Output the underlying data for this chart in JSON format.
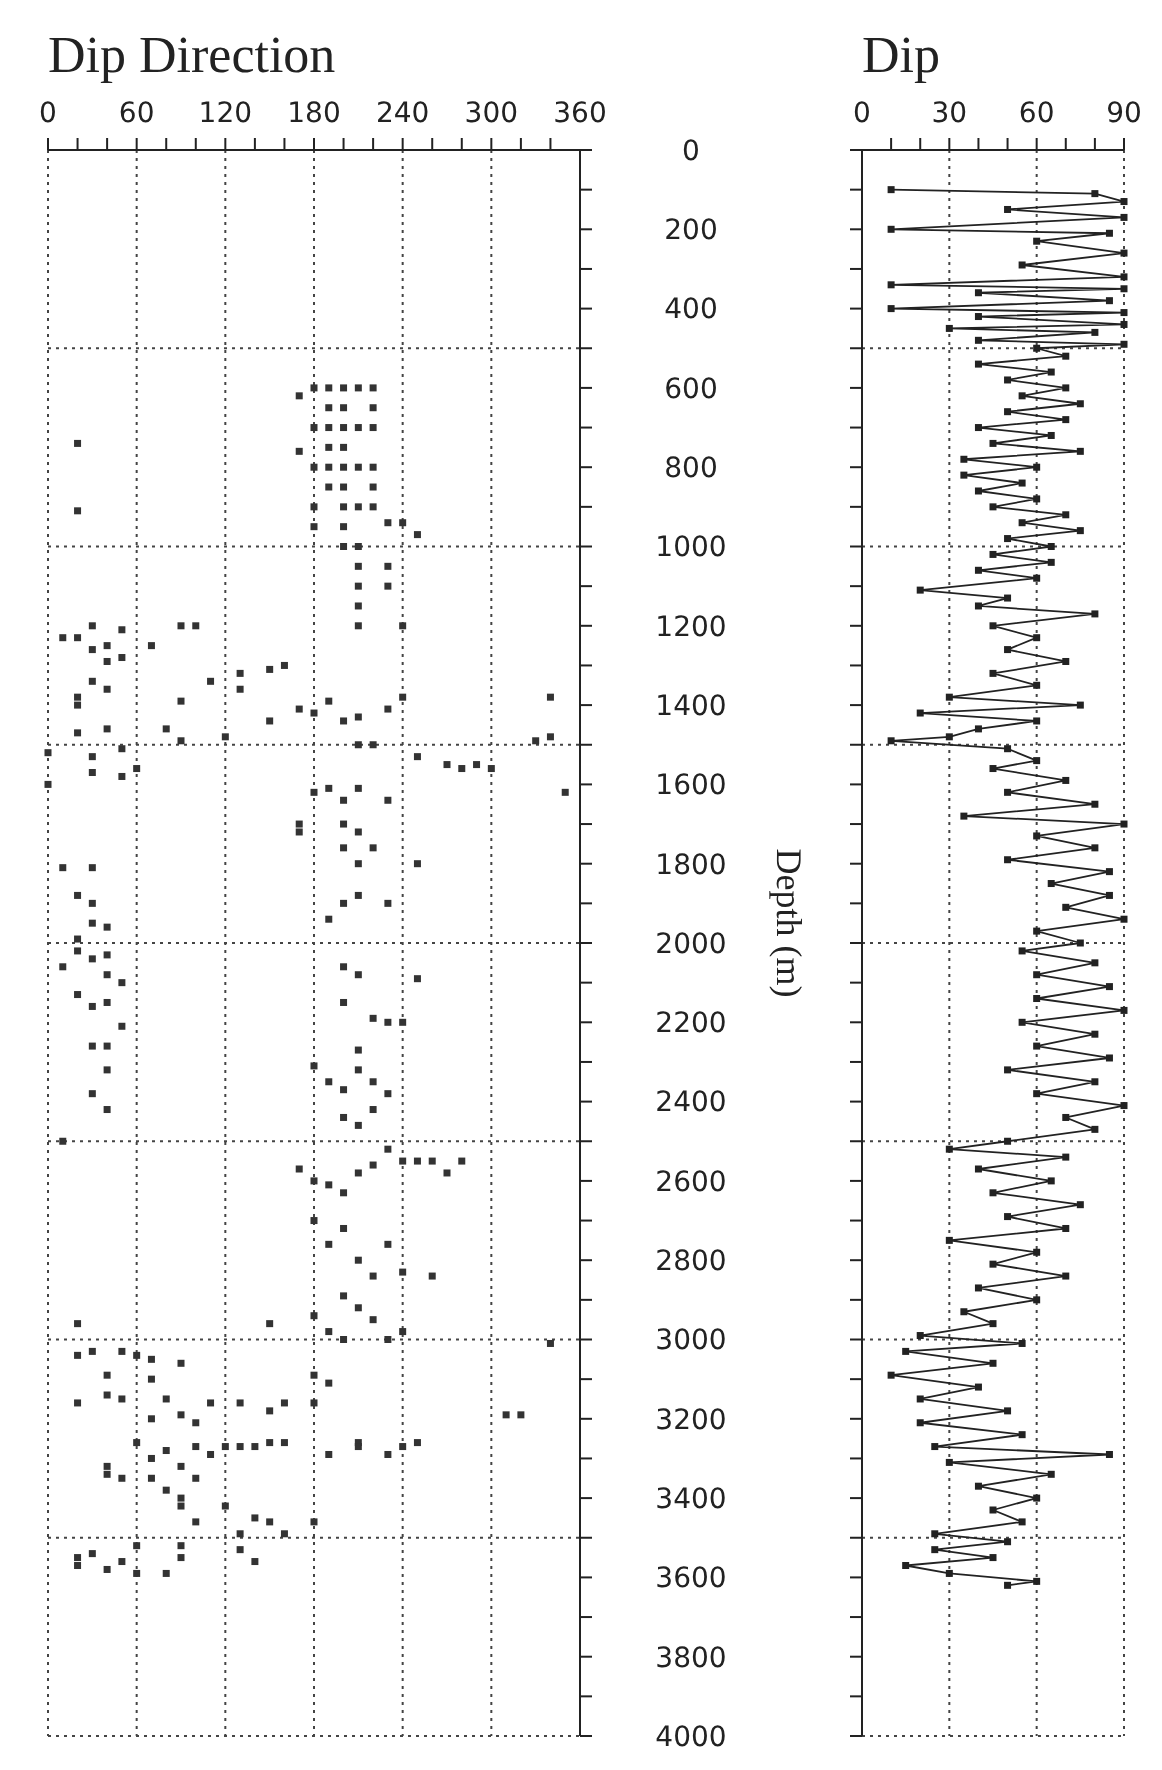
{
  "chart_data": [
    {
      "type": "scatter",
      "title": "Dip Direction",
      "ylabel": "Depth (m)",
      "marker": "square",
      "color": "#333333",
      "x": [
        20,
        20,
        190,
        190,
        190,
        190,
        190,
        190,
        200,
        200,
        200,
        200,
        200,
        200,
        200,
        200,
        200,
        210,
        210,
        210,
        210,
        210,
        210,
        210,
        210,
        210,
        220,
        220,
        220,
        220,
        220,
        220,
        180,
        180,
        180,
        180,
        180,
        170,
        170,
        230,
        230,
        230,
        240,
        240,
        250,
        10,
        20,
        30,
        30,
        40,
        40,
        50,
        50,
        70,
        90,
        100,
        110,
        130,
        130,
        150,
        150,
        160,
        30,
        40,
        20,
        20,
        90,
        170,
        180,
        190,
        200,
        210,
        230,
        240,
        20,
        40,
        80,
        120,
        90,
        330,
        340,
        340,
        210,
        220,
        0,
        0,
        30,
        30,
        50,
        50,
        60,
        250,
        270,
        280,
        290,
        300,
        350,
        180,
        190,
        200,
        210,
        230,
        170,
        170,
        200,
        200,
        210,
        210,
        220,
        210,
        200,
        190,
        230,
        250,
        10,
        30,
        20,
        30,
        30,
        20,
        40,
        10,
        20,
        30,
        40,
        40,
        50,
        20,
        30,
        40,
        50,
        30,
        40,
        30,
        40,
        40,
        200,
        210,
        200,
        220,
        230,
        210,
        240,
        250,
        180,
        190,
        200,
        210,
        220,
        230,
        200,
        210,
        220,
        10,
        180,
        190,
        200,
        210,
        220,
        230,
        240,
        250,
        260,
        270,
        280,
        170,
        180,
        190,
        200,
        210,
        220,
        230,
        240,
        260,
        200,
        210,
        220,
        180,
        190,
        200,
        230,
        240,
        20,
        150,
        340,
        20,
        30,
        50,
        60,
        70,
        90,
        40,
        20,
        40,
        50,
        70,
        70,
        80,
        90,
        100,
        110,
        130,
        150,
        160,
        180,
        180,
        190,
        60,
        70,
        70,
        80,
        80,
        90,
        90,
        100,
        100,
        110,
        120,
        130,
        140,
        150,
        160,
        190,
        210,
        230,
        240,
        250,
        40,
        40,
        50,
        210,
        310,
        320,
        90,
        100,
        130,
        140,
        150,
        160,
        180,
        120,
        20,
        30,
        20,
        40,
        50,
        60,
        60,
        80,
        90,
        90,
        130,
        140
      ],
      "values": [
        740,
        910,
        600,
        650,
        700,
        750,
        800,
        850,
        600,
        650,
        700,
        750,
        800,
        850,
        900,
        950,
        1000,
        600,
        700,
        800,
        900,
        1000,
        1050,
        1100,
        1150,
        1200,
        600,
        650,
        700,
        800,
        850,
        900,
        600,
        700,
        800,
        900,
        950,
        620,
        760,
        940,
        1050,
        1100,
        940,
        1200,
        970,
        1230,
        1230,
        1200,
        1260,
        1250,
        1290,
        1210,
        1280,
        1250,
        1200,
        1200,
        1340,
        1320,
        1360,
        1310,
        1440,
        1300,
        1340,
        1360,
        1380,
        1400,
        1390,
        1410,
        1420,
        1390,
        1440,
        1430,
        1410,
        1380,
        1470,
        1460,
        1460,
        1480,
        1490,
        1490,
        1480,
        1380,
        1500,
        1500,
        1520,
        1600,
        1530,
        1570,
        1510,
        1580,
        1560,
        1530,
        1550,
        1560,
        1550,
        1560,
        1620,
        1620,
        1610,
        1640,
        1610,
        1640,
        1700,
        1720,
        1700,
        1760,
        1720,
        1800,
        1760,
        1880,
        1900,
        1940,
        1900,
        1800,
        1810,
        1810,
        1880,
        1900,
        1950,
        1990,
        1960,
        2060,
        2020,
        2040,
        2030,
        2080,
        2100,
        2130,
        2160,
        2150,
        2210,
        2260,
        2320,
        2380,
        2420,
        2260,
        2060,
        2080,
        2150,
        2190,
        2200,
        2270,
        2200,
        2090,
        2310,
        2350,
        2370,
        2320,
        2350,
        2380,
        2440,
        2460,
        2420,
        2500,
        2600,
        2610,
        2630,
        2580,
        2560,
        2520,
        2550,
        2550,
        2550,
        2580,
        2550,
        2570,
        2700,
        2760,
        2720,
        2800,
        2840,
        2760,
        2830,
        2840,
        2890,
        2920,
        2950,
        2940,
        2980,
        3000,
        3000,
        2980,
        2960,
        2960,
        3010,
        3040,
        3030,
        3030,
        3040,
        3050,
        3060,
        3090,
        3160,
        3140,
        3150,
        3100,
        3200,
        3150,
        3190,
        3210,
        3160,
        3160,
        3180,
        3160,
        3160,
        3090,
        3110,
        3260,
        3300,
        3350,
        3280,
        3380,
        3320,
        3400,
        3270,
        3350,
        3290,
        3270,
        3270,
        3270,
        3260,
        3260,
        3290,
        3260,
        3290,
        3270,
        3260,
        3320,
        3340,
        3350,
        3270,
        3190,
        3190,
        3420,
        3460,
        3490,
        3450,
        3460,
        3490,
        3460,
        3420,
        3550,
        3540,
        3570,
        3580,
        3560,
        3520,
        3590,
        3590,
        3550,
        3520,
        3530,
        3560
      ],
      "xlim": [
        0,
        360
      ],
      "xticks": [
        0,
        {
          "value": 20,
          "label": null
        },
        {
          "value": 40,
          "label": null
        },
        60,
        {
          "value": 80,
          "label": null
        },
        {
          "value": 100,
          "label": null
        },
        120,
        {
          "value": 140,
          "label": null
        },
        {
          "value": 160,
          "label": null
        },
        180,
        {
          "value": 200,
          "label": null
        },
        {
          "value": 220,
          "label": null
        },
        240,
        {
          "value": 260,
          "label": null
        },
        {
          "value": 280,
          "label": null
        },
        300,
        {
          "value": 320,
          "label": null
        },
        {
          "value": 340,
          "label": null
        },
        360
      ],
      "ylim": [
        4000,
        0
      ],
      "yticks": [
        0,
        {
          "value": 100,
          "label": null
        },
        200,
        {
          "value": 300,
          "label": null
        },
        400,
        {
          "value": 500,
          "label": null
        },
        600,
        {
          "value": 700,
          "label": null
        },
        800,
        {
          "value": 900,
          "label": null
        },
        1000,
        {
          "value": 1100,
          "label": null
        },
        1200,
        {
          "value": 1300,
          "label": null
        },
        1400,
        {
          "value": 1500,
          "label": null
        },
        1600,
        {
          "value": 1700,
          "label": null
        },
        1800,
        {
          "value": 1900,
          "label": null
        },
        2000,
        {
          "value": 2100,
          "label": null
        },
        2200,
        {
          "value": 2300,
          "label": null
        },
        2400,
        {
          "value": 2500,
          "label": null
        },
        2600,
        {
          "value": 2700,
          "label": null
        },
        2800,
        {
          "value": 2900,
          "label": null
        },
        3000,
        {
          "value": 3100,
          "label": null
        },
        3200,
        {
          "value": 3300,
          "label": null
        },
        3400,
        {
          "value": 3500,
          "label": null
        },
        3600,
        {
          "value": 3700,
          "label": null
        },
        3800,
        {
          "value": 3900,
          "label": null
        },
        4000
      ],
      "ref_lines": [
        {
          "axis": "x",
          "value": 60,
          "color": "#444444",
          "line_style": "dotted"
        },
        {
          "axis": "x",
          "value": 120,
          "color": "#444444",
          "line_style": "dotted"
        },
        {
          "axis": "x",
          "value": 180,
          "color": "#444444",
          "line_style": "dotted"
        },
        {
          "axis": "x",
          "value": 240,
          "color": "#444444",
          "line_style": "dotted"
        },
        {
          "axis": "x",
          "value": 300,
          "color": "#444444",
          "line_style": "dotted"
        },
        {
          "axis": "y",
          "value": 500,
          "color": "#444444",
          "line_style": "dotted"
        },
        {
          "axis": "y",
          "value": 1000,
          "color": "#444444",
          "line_style": "dotted"
        },
        {
          "axis": "y",
          "value": 1500,
          "color": "#444444",
          "line_style": "dotted"
        },
        {
          "axis": "y",
          "value": 2000,
          "color": "#444444",
          "line_style": "dotted"
        },
        {
          "axis": "y",
          "value": 2500,
          "color": "#444444",
          "line_style": "dotted"
        },
        {
          "axis": "y",
          "value": 3000,
          "color": "#444444",
          "line_style": "dotted"
        },
        {
          "axis": "y",
          "value": 3500,
          "color": "#444444",
          "line_style": "dotted"
        }
      ]
    },
    {
      "type": "line",
      "title": "Dip",
      "marker": "square",
      "line_style": "solid",
      "color": "#222222",
      "tick_labels": "x",
      "x": [
        10,
        80,
        90,
        50,
        90,
        10,
        85,
        60,
        90,
        55,
        90,
        10,
        90,
        40,
        85,
        10,
        90,
        40,
        90,
        30,
        80,
        40,
        90,
        60,
        70,
        40,
        65,
        50,
        70,
        55,
        75,
        50,
        70,
        40,
        65,
        45,
        75,
        35,
        60,
        35,
        55,
        40,
        60,
        45,
        70,
        55,
        75,
        50,
        65,
        45,
        65,
        40,
        60,
        20,
        50,
        40,
        80,
        45,
        60,
        50,
        70,
        45,
        60,
        30,
        75,
        20,
        60,
        40,
        30,
        10,
        50,
        60,
        45,
        70,
        50,
        80,
        35,
        90,
        60,
        80,
        50,
        85,
        65,
        85,
        70,
        90,
        60,
        75,
        55,
        80,
        60,
        85,
        60,
        90,
        55,
        80,
        60,
        85,
        50,
        80,
        60,
        90,
        70,
        80,
        50,
        30,
        70,
        40,
        65,
        45,
        75,
        50,
        70,
        30,
        60,
        45,
        70,
        40,
        60,
        35,
        45,
        20,
        55,
        15,
        45,
        10,
        40,
        20,
        50,
        20,
        55,
        25,
        85,
        30,
        65,
        40,
        60,
        45,
        55,
        25,
        50,
        25,
        45,
        15,
        30,
        60,
        50
      ],
      "values": [
        100,
        110,
        130,
        150,
        170,
        200,
        210,
        230,
        260,
        290,
        320,
        340,
        350,
        360,
        380,
        400,
        410,
        420,
        440,
        450,
        460,
        480,
        490,
        500,
        520,
        540,
        560,
        580,
        600,
        620,
        640,
        660,
        680,
        700,
        720,
        740,
        760,
        780,
        800,
        820,
        840,
        860,
        880,
        900,
        920,
        940,
        960,
        980,
        1000,
        1020,
        1040,
        1060,
        1080,
        1110,
        1130,
        1150,
        1170,
        1200,
        1230,
        1260,
        1290,
        1320,
        1350,
        1380,
        1400,
        1420,
        1440,
        1460,
        1480,
        1490,
        1510,
        1540,
        1560,
        1590,
        1620,
        1650,
        1680,
        1700,
        1730,
        1760,
        1790,
        1820,
        1850,
        1880,
        1910,
        1940,
        1970,
        2000,
        2020,
        2050,
        2080,
        2110,
        2140,
        2170,
        2200,
        2230,
        2260,
        2290,
        2320,
        2350,
        2380,
        2410,
        2440,
        2470,
        2500,
        2520,
        2540,
        2570,
        2600,
        2630,
        2660,
        2690,
        2720,
        2750,
        2780,
        2810,
        2840,
        2870,
        2900,
        2930,
        2960,
        2990,
        3010,
        3030,
        3060,
        3090,
        3120,
        3150,
        3180,
        3210,
        3240,
        3270,
        3290,
        3310,
        3340,
        3370,
        3400,
        3430,
        3460,
        3490,
        3510,
        3530,
        3550,
        3570,
        3590,
        3610,
        3620
      ],
      "xlim": [
        0,
        90
      ],
      "xticks": [
        0,
        {
          "value": 10,
          "label": null
        },
        {
          "value": 20,
          "label": null
        },
        30,
        {
          "value": 40,
          "label": null
        },
        {
          "value": 50,
          "label": null
        },
        60,
        {
          "value": 70,
          "label": null
        },
        {
          "value": 80,
          "label": null
        },
        90
      ],
      "ylim": [
        4000,
        0
      ],
      "yticks": [
        0,
        {
          "value": 100,
          "label": null
        },
        200,
        {
          "value": 300,
          "label": null
        },
        400,
        {
          "value": 500,
          "label": null
        },
        600,
        {
          "value": 700,
          "label": null
        },
        800,
        {
          "value": 900,
          "label": null
        },
        1000,
        {
          "value": 1100,
          "label": null
        },
        1200,
        {
          "value": 1300,
          "label": null
        },
        1400,
        {
          "value": 1500,
          "label": null
        },
        1600,
        {
          "value": 1700,
          "label": null
        },
        1800,
        {
          "value": 1900,
          "label": null
        },
        2000,
        {
          "value": 2100,
          "label": null
        },
        2200,
        {
          "value": 2300,
          "label": null
        },
        2400,
        {
          "value": 2500,
          "label": null
        },
        2600,
        {
          "value": 2700,
          "label": null
        },
        2800,
        {
          "value": 2900,
          "label": null
        },
        3000,
        {
          "value": 3100,
          "label": null
        },
        3200,
        {
          "value": 3300,
          "label": null
        },
        3400,
        {
          "value": 3500,
          "label": null
        },
        3600,
        {
          "value": 3700,
          "label": null
        },
        3800,
        {
          "value": 3900,
          "label": null
        },
        4000
      ],
      "ref_lines": [
        {
          "axis": "x",
          "value": 30,
          "color": "#444444",
          "line_style": "dotted"
        },
        {
          "axis": "x",
          "value": 60,
          "color": "#444444",
          "line_style": "dotted"
        },
        {
          "axis": "y",
          "value": 500,
          "color": "#444444",
          "line_style": "dotted"
        },
        {
          "axis": "y",
          "value": 1000,
          "color": "#444444",
          "line_style": "dotted"
        },
        {
          "axis": "y",
          "value": 1500,
          "color": "#444444",
          "line_style": "dotted"
        },
        {
          "axis": "y",
          "value": 2000,
          "color": "#444444",
          "line_style": "dotted"
        },
        {
          "axis": "y",
          "value": 2500,
          "color": "#444444",
          "line_style": "dotted"
        },
        {
          "axis": "y",
          "value": 3000,
          "color": "#444444",
          "line_style": "dotted"
        },
        {
          "axis": "y",
          "value": 3500,
          "color": "#444444",
          "line_style": "dotted"
        }
      ]
    }
  ]
}
